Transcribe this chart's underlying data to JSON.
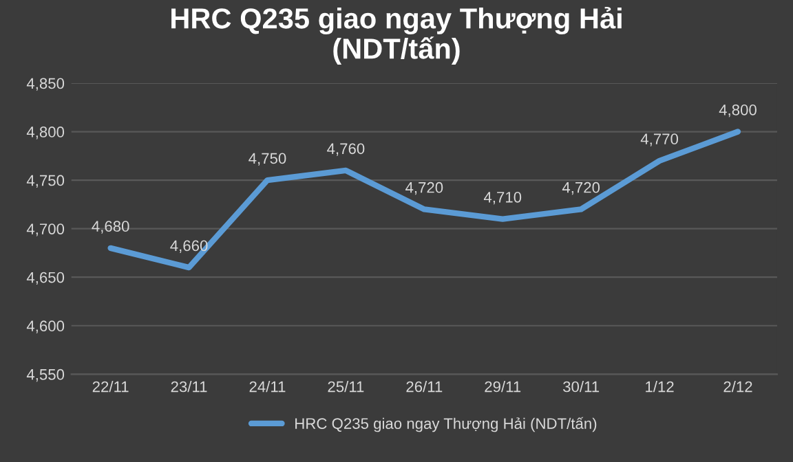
{
  "chart_data": {
    "type": "line",
    "title": "HRC Q235 giao ngay Thượng Hải\n(NDT/tấn)",
    "categories": [
      "22/11",
      "23/11",
      "24/11",
      "25/11",
      "26/11",
      "29/11",
      "30/11",
      "1/12",
      "2/12"
    ],
    "series": [
      {
        "name": "HRC Q235 giao ngay Thượng Hải (NDT/tấn)",
        "color": "#5b9bd5",
        "values": [
          4680,
          4660,
          4750,
          4760,
          4720,
          4710,
          4720,
          4770,
          4800
        ],
        "value_labels": [
          "4,680",
          "4,660",
          "4,750",
          "4,760",
          "4,720",
          "4,710",
          "4,720",
          "4,770",
          "4,800"
        ]
      }
    ],
    "ylim": [
      4550,
      4850
    ],
    "yticks": [
      {
        "value": 4550,
        "label": "4,550"
      },
      {
        "value": 4600,
        "label": "4,600"
      },
      {
        "value": 4650,
        "label": "4,650"
      },
      {
        "value": 4700,
        "label": "4,700"
      },
      {
        "value": 4750,
        "label": "4,750"
      },
      {
        "value": 4800,
        "label": "4,800"
      },
      {
        "value": 4850,
        "label": "4,850"
      }
    ],
    "grid": "y",
    "legend": "bottom",
    "marker": "none",
    "line_style": "solid"
  }
}
